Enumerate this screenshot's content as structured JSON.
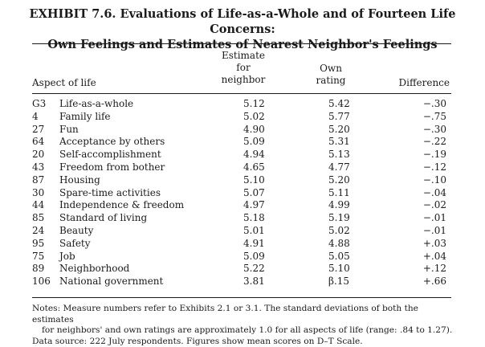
{
  "title_line1": "EXHIBIT 7.6. Evaluations of Life-as-a-Whole and of Fourteen Life Concerns:",
  "title_line2": "Own Feelings and Estimates of Nearest Neighbor's Feelings",
  "headers": {
    "aspect": "Aspect of life",
    "estimate_line1": "Estimate",
    "estimate_line2": "for",
    "estimate_line3": "neighbor",
    "own_line1": "Own",
    "own_line2": "rating",
    "difference": "Difference"
  },
  "rows": [
    {
      "num": "G3",
      "label": "Life-as-a-whole",
      "estimate": "5.12",
      "own": "5.42",
      "difference": "−.30"
    },
    {
      "num": "4",
      "label": "Family life",
      "estimate": "5.02",
      "own": "5.77",
      "difference": "−.75"
    },
    {
      "num": "27",
      "label": "Fun",
      "estimate": "4.90",
      "own": "5.20",
      "difference": "−.30"
    },
    {
      "num": "64",
      "label": "Acceptance by others",
      "estimate": "5.09",
      "own": "5.31",
      "difference": "−.22"
    },
    {
      "num": "20",
      "label": "Self-accomplishment",
      "estimate": "4.94",
      "own": "5.13",
      "difference": "−.19"
    },
    {
      "num": "43",
      "label": "Freedom from bother",
      "estimate": "4.65",
      "own": "4.77",
      "difference": "−.12"
    },
    {
      "num": "87",
      "label": "Housing",
      "estimate": "5.10",
      "own": "5.20",
      "difference": "−.10"
    },
    {
      "num": "30",
      "label": "Spare-time activities",
      "estimate": "5.07",
      "own": "5.11",
      "difference": "−.04"
    },
    {
      "num": "44",
      "label": "Independence & freedom",
      "estimate": "4.97",
      "own": "4.99",
      "difference": "−.02"
    },
    {
      "num": "85",
      "label": "Standard of living",
      "estimate": "5.18",
      "own": "5.19",
      "difference": "−.01"
    },
    {
      "num": "24",
      "label": "Beauty",
      "estimate": "5.01",
      "own": "5.02",
      "difference": "−.01"
    },
    {
      "num": "95",
      "label": "Safety",
      "estimate": "4.91",
      "own": "4.88",
      "difference": "+.03"
    },
    {
      "num": "75",
      "label": "Job",
      "estimate": "5.09",
      "own": "5.05",
      "difference": "+.04"
    },
    {
      "num": "89",
      "label": "Neighborhood",
      "estimate": "5.22",
      "own": "5.10",
      "difference": "+.12"
    },
    {
      "num": "106",
      "label": "National government",
      "estimate": "3.81",
      "own": "β.15",
      "difference": "+.66"
    }
  ],
  "notes": {
    "line1": "Notes: Measure numbers refer to Exhibits 2.1 or 3.1. The standard deviations of both the estimates",
    "line2": "for neighbors' and own ratings are approximately 1.0 for all aspects of life (range: .84 to 1.27).",
    "line3": "Data source: 222 July respondents. Figures show mean scores on D–T Scale."
  }
}
